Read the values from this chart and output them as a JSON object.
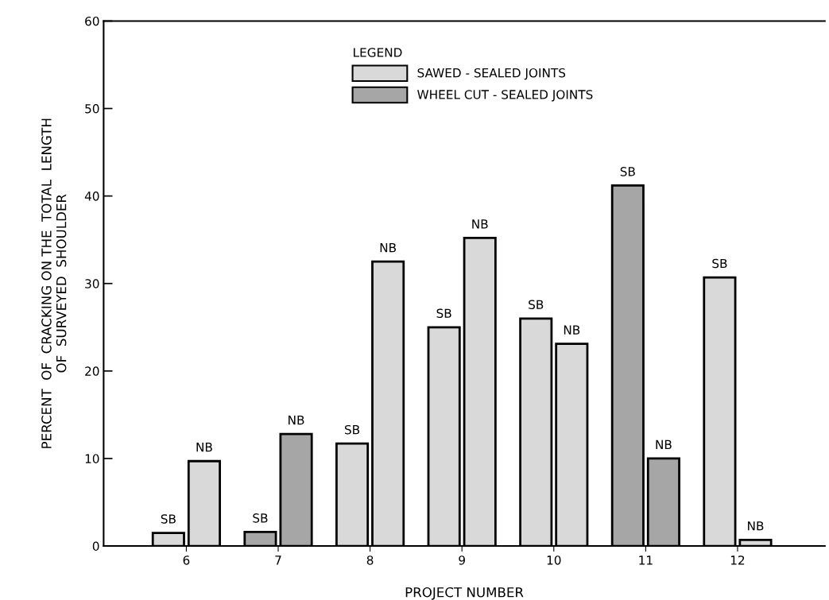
{
  "chart_data": {
    "type": "bar",
    "xlabel": "PROJECT NUMBER",
    "ylabel": "PERCENT  OF  CRACKING ON THE  TOTAL  LENGTH\nOF  SURVEYED  SHOULDER",
    "categories": [
      "6",
      "7",
      "8",
      "9",
      "10",
      "11",
      "12"
    ],
    "series": [
      {
        "name": "SAWED - SEALED JOINTS",
        "color": "#d9d9d9",
        "values": [
          null,
          null,
          null,
          null,
          null,
          null,
          null
        ]
      },
      {
        "name": "WHEEL CUT - SEALED JOINTS",
        "color": "#a6a6a6",
        "values": [
          null,
          null,
          null,
          null,
          null,
          null,
          null
        ]
      },
      {
        "values": [
          1.5,
          1.6,
          11.7,
          25.0,
          26.0,
          41.2,
          30.7
        ],
        "colors": [
          "#d9d9d9",
          "#a6a6a6",
          "#d9d9d9",
          "#d9d9d9",
          "#d9d9d9",
          "#a6a6a6",
          "#d9d9d9"
        ],
        "value_labels": [
          "SB",
          "SB",
          "SB",
          "SB",
          "SB",
          "SB",
          "SB"
        ]
      },
      {
        "values": [
          9.7,
          12.8,
          32.5,
          35.2,
          23.1,
          10.0,
          0.7
        ],
        "colors": [
          "#d9d9d9",
          "#a6a6a6",
          "#d9d9d9",
          "#d9d9d9",
          "#d9d9d9",
          "#a6a6a6",
          "#d9d9d9"
        ],
        "value_labels": [
          "NB",
          "NB",
          "NB",
          "NB",
          "NB",
          "NB",
          "NB"
        ]
      }
    ],
    "legend_title": "LEGEND",
    "legend": "top",
    "ylim": [
      0,
      60
    ],
    "yticks": [
      0,
      10,
      20,
      30,
      40,
      50,
      60
    ],
    "grid": false
  }
}
